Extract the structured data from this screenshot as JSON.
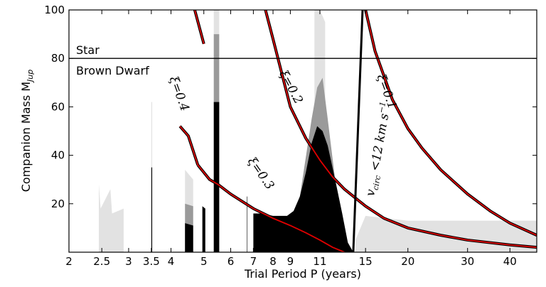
{
  "chart_data": {
    "type": "area",
    "title": "",
    "xlabel": "Trial Period P (years)",
    "ylabel": "Companion Mass M",
    "ylabel_sub": "Jup",
    "x_scale": "log",
    "xlim": [
      2,
      48
    ],
    "ylim": [
      0,
      100
    ],
    "x_ticks": [
      2,
      2.5,
      3,
      3.5,
      4,
      5,
      6,
      7,
      8,
      9,
      11,
      15,
      20,
      30,
      40
    ],
    "x_tick_labels": [
      "2",
      "2.5",
      "3",
      "3.5",
      "4",
      "5",
      "6",
      "7",
      "8",
      "9",
      "11",
      "15",
      "20",
      "30",
      "40"
    ],
    "y_ticks": [
      20,
      40,
      60,
      80,
      100
    ],
    "y_tick_labels": [
      "20",
      "40",
      "60",
      "80",
      "100"
    ],
    "boundary": {
      "mass": 80,
      "above_label": "Star",
      "below_label": "Brown Dwarf"
    },
    "xi_curves": [
      {
        "label": "ξ=0.4",
        "x": [
          4.25,
          4.5,
          4.8
        ],
        "y": [
          52,
          48,
          36
        ]
      },
      {
        "label": "ξ=0.4 (upper)",
        "x": [
          4.7,
          5.0
        ],
        "y": [
          100,
          86
        ]
      },
      {
        "label": "ξ=0.3",
        "x": [
          4.8,
          5.2,
          5.5,
          6.0,
          7.0,
          8.0,
          9.0,
          10.0,
          11.0,
          12.0,
          13.0
        ],
        "y": [
          36,
          30,
          28,
          24,
          18,
          14,
          11,
          8,
          5,
          2,
          0
        ]
      },
      {
        "label": "ξ=0.2",
        "x": [
          7.6,
          8.0,
          9.0,
          10.0,
          11.0,
          12.0,
          13.0,
          15.0,
          17.0,
          20.0,
          25.0,
          30.0,
          40.0,
          48.0
        ],
        "y": [
          100,
          88,
          60,
          47,
          38,
          31,
          26,
          19,
          14,
          10,
          7,
          5,
          3,
          2
        ]
      },
      {
        "label": "ξ=0.1",
        "x": [
          15.0,
          16.0,
          18.0,
          20.0,
          22.0,
          25.0,
          30.0,
          35.0,
          40.0,
          48.0
        ],
        "y": [
          100,
          83,
          63,
          51,
          43,
          34,
          24,
          17,
          12,
          7
        ]
      }
    ],
    "vcirc_line": {
      "label": "v_circ < 12 km s^-1",
      "x": [
        13.8,
        14.7
      ],
      "y": [
        0,
        100
      ]
    },
    "excluded_regions": {
      "black_max": [
        {
          "x": [
            3.5,
            3.52
          ],
          "y": [
            35,
            35
          ]
        },
        {
          "x": [
            4.4,
            4.65
          ],
          "y": [
            12,
            11
          ]
        },
        {
          "x": [
            4.95,
            5.05
          ],
          "y": [
            19,
            18
          ]
        },
        {
          "x": [
            5.35,
            5.55
          ],
          "y": [
            62,
            62
          ]
        },
        {
          "x": [
            6.7,
            6.72
          ],
          "y": [
            23,
            23
          ]
        },
        {
          "x": [
            7.0,
            7.4,
            8.0,
            8.8,
            9.2,
            9.6,
            10.0,
            10.4,
            10.8,
            11.2,
            11.6,
            12.2,
            12.8,
            13.3,
            13.8
          ],
          "y": [
            16,
            16,
            15,
            15,
            17,
            23,
            33,
            45,
            52,
            50,
            44,
            30,
            16,
            4,
            0
          ]
        }
      ],
      "gray_max": [
        {
          "x": [
            4.4,
            4.65
          ],
          "y": [
            20,
            19
          ]
        },
        {
          "x": [
            5.35,
            5.55
          ],
          "y": [
            90,
            90
          ]
        },
        {
          "x": [
            9.6,
            10.4,
            10.8,
            11.2,
            11.6,
            12.2
          ],
          "y": [
            23,
            55,
            68,
            72,
            55,
            30
          ]
        }
      ],
      "light_max": [
        {
          "x": [
            2.45,
            2.48,
            2.65,
            2.68,
            2.9
          ],
          "y": [
            28,
            18,
            26,
            16,
            18
          ]
        },
        {
          "x": [
            3.5,
            3.52
          ],
          "y": [
            62,
            62
          ]
        },
        {
          "x": [
            4.4,
            4.65
          ],
          "y": [
            34,
            30
          ]
        },
        {
          "x": [
            5.35,
            5.55
          ],
          "y": [
            100,
            100
          ]
        },
        {
          "x": [
            10.6,
            11.0,
            11.4
          ],
          "y": [
            100,
            100,
            95
          ]
        },
        {
          "x": [
            14.0,
            15.0,
            20.0,
            30.0,
            48.0
          ],
          "y": [
            5,
            15,
            13,
            13,
            13
          ]
        }
      ]
    }
  }
}
